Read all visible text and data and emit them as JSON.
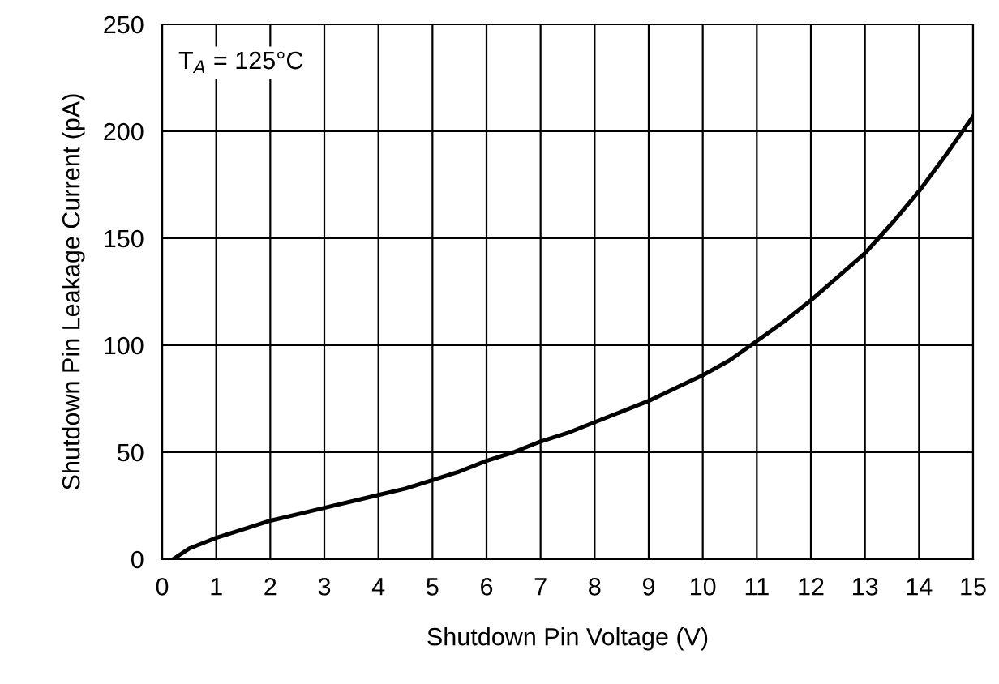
{
  "chart_data": {
    "type": "line",
    "xlabel": "Shutdown Pin Voltage (V)",
    "ylabel": "Shutdown Pin Leakage Current (pA)",
    "annotations": [
      "T$_{A}$ = 125°C"
    ],
    "series": [
      {
        "color": "#000000",
        "x": [
          0.2,
          0.5,
          1,
          1.5,
          2,
          2.5,
          3,
          3.5,
          4,
          4.5,
          5,
          5.5,
          6,
          6.5,
          7,
          7.5,
          8,
          8.5,
          9,
          9.5,
          10,
          10.5,
          11,
          11.5,
          12,
          12.5,
          13,
          13.5,
          14,
          14.5,
          15
        ],
        "values": [
          0,
          5,
          10,
          14,
          18,
          21,
          24,
          27,
          30,
          33,
          37,
          41,
          46,
          50,
          55,
          59,
          64,
          69,
          74,
          80,
          86,
          93,
          102,
          111,
          121,
          132,
          143,
          157,
          172,
          189,
          207
        ]
      }
    ],
    "xlim": [
      0,
      15
    ],
    "xticks": [
      0,
      1,
      2,
      3,
      4,
      5,
      6,
      7,
      8,
      9,
      10,
      11,
      12,
      13,
      14,
      15
    ],
    "ylim": [
      0,
      250
    ],
    "yticks": [
      0,
      50,
      100,
      150,
      200,
      250
    ],
    "grid": true,
    "line_style": "solid",
    "marker": "none"
  }
}
